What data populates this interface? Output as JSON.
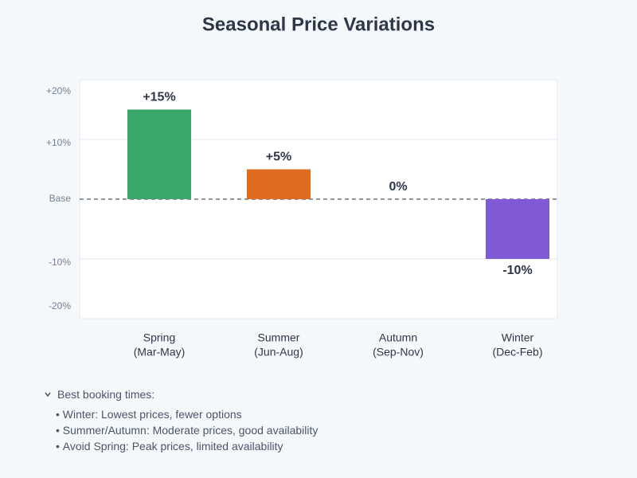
{
  "chart_data": {
    "type": "bar",
    "title": "Seasonal Price Variations",
    "categories": [
      "Spring",
      "Summer",
      "Autumn",
      "Winter"
    ],
    "category_ranges": [
      "(Mar-May)",
      "(Jun-Aug)",
      "(Sep-Nov)",
      "(Dec-Feb)"
    ],
    "values": [
      15,
      5,
      0,
      -10
    ],
    "value_labels": [
      "+15%",
      "+5%",
      "0%",
      "-10%"
    ],
    "colors": [
      "#3ba66b",
      "#dd6b20",
      "#a0aec0",
      "#805ad5"
    ],
    "ylim": [
      -20,
      20
    ],
    "yticks": [
      {
        "value": 20,
        "label": "+20%"
      },
      {
        "value": 10,
        "label": "+10%"
      },
      {
        "value": 0,
        "label": "Base"
      },
      {
        "value": -10,
        "label": "-10%"
      },
      {
        "value": -20,
        "label": "-20%"
      }
    ],
    "grid": true
  },
  "notes": {
    "heading": "Best booking times:",
    "items": [
      "Winter: Lowest prices, fewer options",
      "Summer/Autumn: Moderate prices, good availability",
      "Avoid Spring: Peak prices, limited availability"
    ]
  }
}
